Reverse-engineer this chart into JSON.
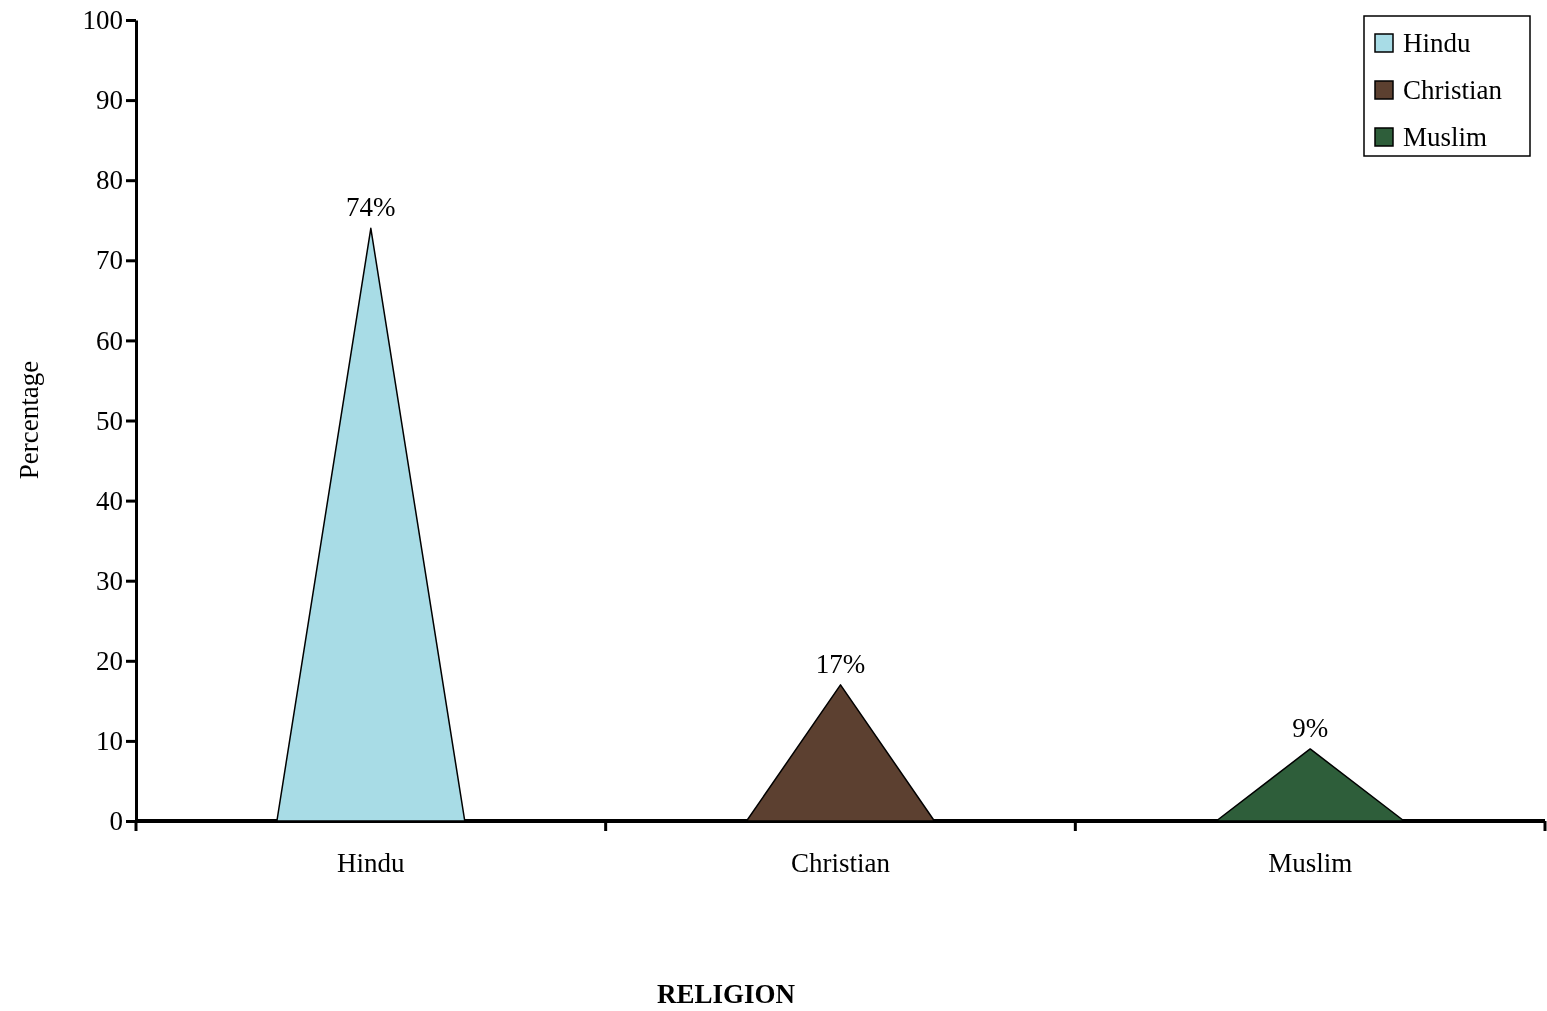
{
  "chart_data": {
    "type": "bar",
    "xlabel": "RELIGION",
    "ylabel": "Percentage",
    "categories": [
      "Hindu",
      "Christian",
      "Muslim"
    ],
    "series": [
      {
        "name": "Hindu",
        "color": "#a8dce6",
        "values": [
          74,
          null,
          null
        ],
        "value_labels": [
          "74%",
          null,
          null
        ]
      },
      {
        "name": "Christian",
        "color": "#5c4030",
        "values": [
          null,
          17,
          null
        ],
        "value_labels": [
          null,
          "17%",
          null
        ]
      },
      {
        "name": "Muslim",
        "color": "#2e5e3a",
        "values": [
          null,
          null,
          9
        ],
        "value_labels": [
          null,
          null,
          "9%"
        ]
      }
    ],
    "ylim": [
      0,
      100
    ],
    "yticks": [
      0,
      10,
      20,
      30,
      40,
      50,
      60,
      70,
      80,
      90,
      100
    ],
    "legend": "top right"
  }
}
